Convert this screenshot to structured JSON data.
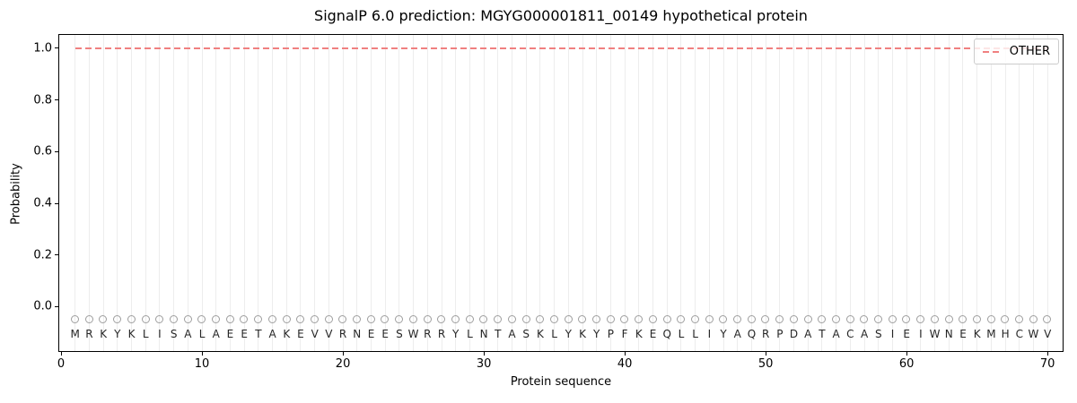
{
  "title": "SignalP 6.0 prediction: MGYG000001811_00149 hypothetical protein",
  "chart_data": {
    "type": "line",
    "title": "SignalP 6.0 prediction: MGYG000001811_00149 hypothetical protein",
    "xlabel": "Protein sequence",
    "ylabel": "Probability",
    "xlim": [
      -0.13,
      71.07
    ],
    "ylim": [
      -0.172,
      1.052
    ],
    "x_ticks": [
      0,
      10,
      20,
      30,
      40,
      50,
      60,
      70
    ],
    "y_ticks": [
      {
        "v": 0.0,
        "label": "0.0"
      },
      {
        "v": 0.2,
        "label": "0.2"
      },
      {
        "v": 0.4,
        "label": "0.4"
      },
      {
        "v": 0.6,
        "label": "0.6"
      },
      {
        "v": 0.8,
        "label": "0.8"
      },
      {
        "v": 1.0,
        "label": "1.0"
      }
    ],
    "grid": {
      "vertical_per_residue": true,
      "color": "#ededed"
    },
    "sequence": "MRKYKLISALAEETAKEVVRNEESWRRYLNTASKLYKYPFKEQLLIYAQRPDATACASIEIWNEKMHCWV",
    "sequence_length": 70,
    "series": [
      {
        "name": "OTHER",
        "color": "#f08080",
        "linestyle": "dashed",
        "x_start": 1,
        "x_end": 70,
        "constant_value": 1.0
      }
    ],
    "marker_row": {
      "y": -0.05,
      "shape": "open-circle",
      "color": "#9e9e9e"
    },
    "letter_row_y": -0.105,
    "legend": {
      "position": "upper right",
      "entries": [
        {
          "label": "OTHER",
          "color": "#f08080",
          "dash": true
        }
      ]
    }
  }
}
